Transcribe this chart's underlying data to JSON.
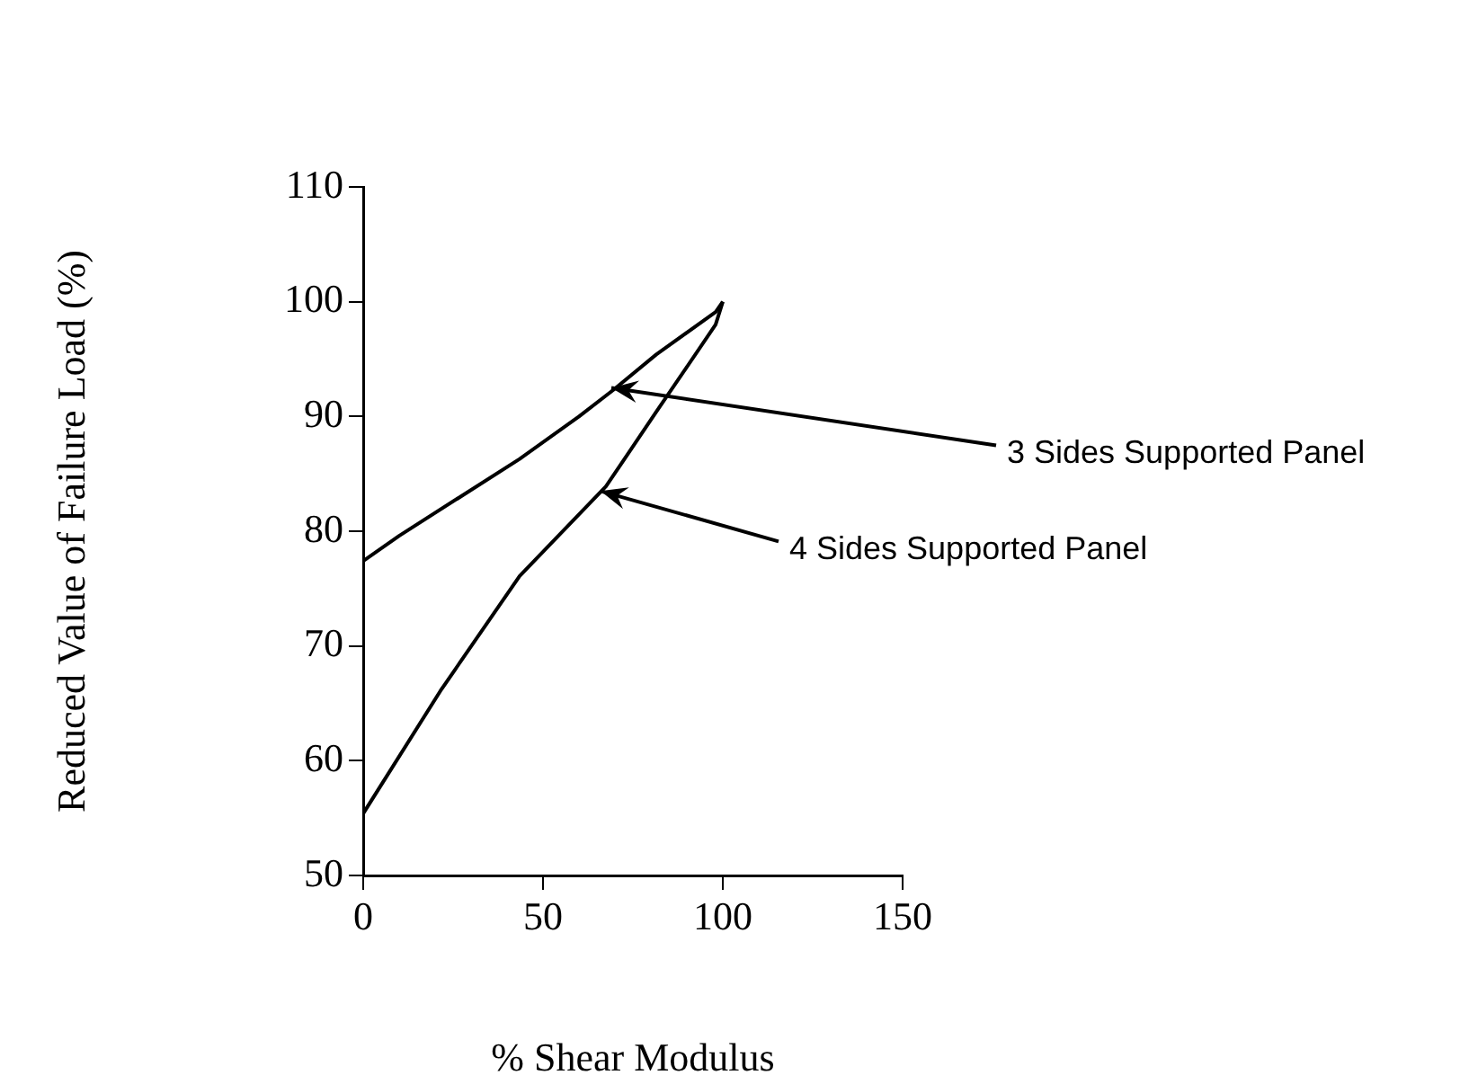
{
  "chart_data": {
    "type": "line",
    "xlabel": "% Shear Modulus",
    "ylabel": "Reduced Value of Failure Load (%)",
    "xlim": [
      0,
      150
    ],
    "xticks": [
      0,
      50,
      100,
      150
    ],
    "ylim": [
      50,
      110
    ],
    "yticks": [
      50,
      60,
      70,
      80,
      90,
      100,
      110
    ],
    "grid": false,
    "legend": false,
    "marker": "none",
    "line_style": "solid",
    "series": [
      {
        "color": "#000000",
        "x": [
          0,
          10,
          27,
          43.5,
          60,
          69.5,
          81.5,
          98,
          100
        ],
        "values": [
          77.4,
          79.6,
          83,
          86.3,
          90,
          92.3,
          95.4,
          99.1,
          100
        ]
      },
      {
        "color": "#000000",
        "x": [
          0,
          21.5,
          43.5,
          67.5,
          81.5,
          98,
          100
        ],
        "values": [
          55.4,
          66.1,
          76.1,
          83.9,
          90.4,
          98,
          100
        ]
      }
    ],
    "annotations": [
      {
        "text": "3 Sides Supported Panel",
        "x": 69,
        "y": 92.5
      },
      {
        "text": "4 Sides Supported Panel",
        "x": 66,
        "y": 83.5
      }
    ]
  }
}
